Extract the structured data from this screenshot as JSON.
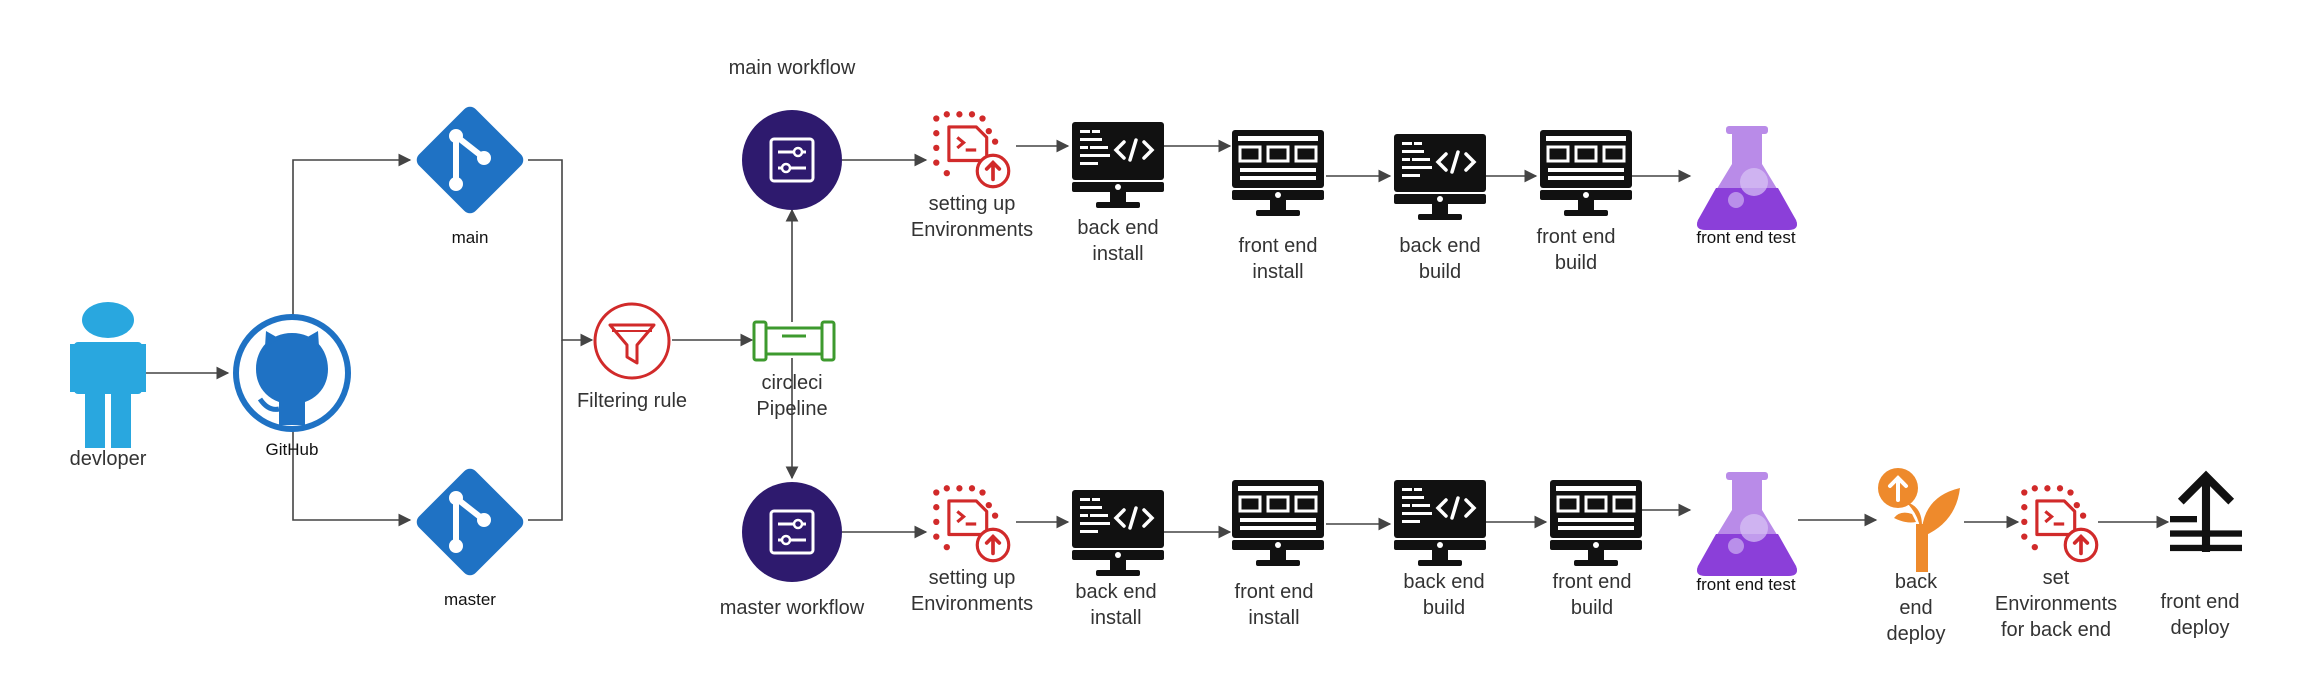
{
  "colors": {
    "developer": "#29a7df",
    "github": "#1f72c4",
    "git": "#1f72c4",
    "filter": "#d12a2a",
    "pipeline": "#3d9a2e",
    "workflow": "#2e1a6e",
    "settings": "#d12a2a",
    "monitor": "#111111",
    "flask": "#8b3fd9",
    "deploy_back": "#ee8a2c",
    "edge": "#444444"
  },
  "nodes": {
    "developer": {
      "label": "devloper",
      "icon": "person-icon"
    },
    "github": {
      "label": "GitHub",
      "icon": "github-icon"
    },
    "branch_main": {
      "label": "main",
      "icon": "git-icon"
    },
    "branch_master": {
      "label": "master",
      "icon": "git-icon"
    },
    "filter": {
      "label": "Filtering rule",
      "icon": "funnel-icon"
    },
    "pipeline": {
      "label_line1": "circleci",
      "label_line2": "Pipeline",
      "icon": "pipe-icon"
    },
    "main_workflow": {
      "label": "main workflow",
      "icon": "workflow-icon"
    },
    "master_workflow": {
      "label": "master workflow",
      "icon": "workflow-icon"
    }
  },
  "main_steps": [
    {
      "lines": [
        "setting up",
        "Environments"
      ],
      "icon": "settings-icon"
    },
    {
      "lines": [
        "back end",
        "install"
      ],
      "icon": "code-monitor-icon"
    },
    {
      "lines": [
        "front end",
        "install"
      ],
      "icon": "grid-monitor-icon"
    },
    {
      "lines": [
        "back end",
        "build"
      ],
      "icon": "code-monitor-icon"
    },
    {
      "lines": [
        "front end",
        "build"
      ],
      "icon": "grid-monitor-icon"
    },
    {
      "lines": [
        "front end test"
      ],
      "icon": "flask-icon"
    }
  ],
  "master_steps": [
    {
      "lines": [
        "setting up",
        "Environments"
      ],
      "icon": "settings-icon"
    },
    {
      "lines": [
        "back end",
        "install"
      ],
      "icon": "code-monitor-icon"
    },
    {
      "lines": [
        "front end",
        "install"
      ],
      "icon": "grid-monitor-icon"
    },
    {
      "lines": [
        "back end",
        "build"
      ],
      "icon": "code-monitor-icon"
    },
    {
      "lines": [
        "front end",
        "build"
      ],
      "icon": "grid-monitor-icon"
    },
    {
      "lines": [
        "front end test"
      ],
      "icon": "flask-icon"
    },
    {
      "lines": [
        "back",
        "end",
        "deploy"
      ],
      "icon": "sprout-deploy-icon"
    },
    {
      "lines": [
        "set",
        "Environments",
        "for back end"
      ],
      "icon": "settings-icon"
    },
    {
      "lines": [
        "front end",
        "deploy"
      ],
      "icon": "upload-icon"
    }
  ]
}
